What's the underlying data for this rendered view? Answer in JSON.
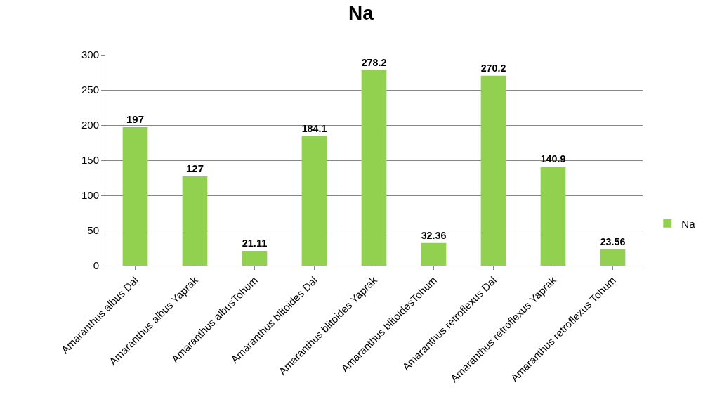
{
  "chart_data": {
    "type": "bar",
    "title": "Na",
    "categories": [
      "Amaranthus albus Dal",
      "Amaranthus albus Yaprak",
      "Amaranthus albusTohum",
      "Amaranthus blitoides Dal",
      "Amaranthus blitoides Yaprak",
      "Amaranthus blitoidesTohum",
      "Amaranthus retroflexus Dal",
      "Amaranthus retroflexus Yaprak",
      "Amaranthus retroflexus Tohum"
    ],
    "series": [
      {
        "name": "Na",
        "color": "#92d050",
        "values": [
          197,
          127,
          21.11,
          184.1,
          278.2,
          32.36,
          270.2,
          140.9,
          23.56
        ]
      }
    ],
    "ylim": [
      0,
      300
    ],
    "yticks": [
      0,
      50,
      100,
      150,
      200,
      250,
      300
    ],
    "grid": "y",
    "legend": "right",
    "data_labels": true
  }
}
